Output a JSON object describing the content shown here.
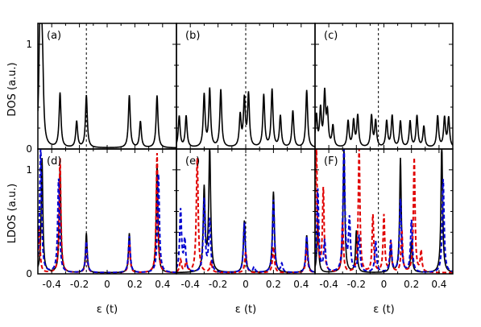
{
  "chart_data": {
    "type": "line",
    "ylabels": {
      "top": "DOS (a.u.)",
      "bottom": "LDOS (a.u.)"
    },
    "xlabel": "ε (t)",
    "xlim": [
      -0.5,
      0.5
    ],
    "xticks": [
      "-0.4",
      "-0.2",
      "0",
      "0.2",
      "0.4"
    ],
    "top_yticks": [
      "0",
      "1"
    ],
    "bottom_yticks": [
      "0",
      "1"
    ],
    "top_ylim": [
      0,
      1.2
    ],
    "bottom_ylim": [
      0,
      1.2
    ],
    "panels": [
      {
        "label": "(a)",
        "row": 0,
        "col": 0,
        "dashed_line_x": -0.15,
        "series": [
          {
            "color": "#000000",
            "dash": false,
            "width": 0.008,
            "peaks": [
              [
                -0.485,
                1.1
              ],
              [
                -0.475,
                0.9
              ],
              [
                -0.465,
                0.45
              ],
              [
                -0.34,
                0.52
              ],
              [
                -0.22,
                0.25
              ],
              [
                -0.15,
                0.5
              ],
              [
                0.16,
                0.5
              ],
              [
                0.24,
                0.25
              ],
              [
                0.36,
                0.5
              ]
            ]
          }
        ]
      },
      {
        "label": "(b)",
        "row": 0,
        "col": 1,
        "dashed_line_x": 0.0,
        "series": [
          {
            "color": "#000000",
            "dash": false,
            "width": 0.008,
            "peaks": [
              [
                -0.48,
                0.3
              ],
              [
                -0.43,
                0.3
              ],
              [
                -0.3,
                0.5
              ],
              [
                -0.26,
                0.55
              ],
              [
                -0.18,
                0.55
              ],
              [
                -0.04,
                0.3
              ],
              [
                -0.01,
                0.45
              ],
              [
                0.02,
                0.5
              ],
              [
                0.13,
                0.5
              ],
              [
                0.19,
                0.55
              ],
              [
                0.25,
                0.3
              ],
              [
                0.34,
                0.35
              ],
              [
                0.44,
                0.55
              ]
            ]
          }
        ]
      },
      {
        "label": "(c)",
        "row": 0,
        "col": 2,
        "dashed_line_x": -0.04,
        "series": [
          {
            "color": "#000000",
            "dash": false,
            "width": 0.008,
            "peaks": [
              [
                -0.49,
                0.3
              ],
              [
                -0.46,
                0.35
              ],
              [
                -0.43,
                0.5
              ],
              [
                -0.41,
                0.3
              ],
              [
                -0.37,
                0.2
              ],
              [
                -0.26,
                0.25
              ],
              [
                -0.22,
                0.25
              ],
              [
                -0.19,
                0.3
              ],
              [
                -0.09,
                0.3
              ],
              [
                -0.06,
                0.25
              ],
              [
                0.02,
                0.25
              ],
              [
                0.06,
                0.3
              ],
              [
                0.12,
                0.25
              ],
              [
                0.19,
                0.25
              ],
              [
                0.24,
                0.3
              ],
              [
                0.29,
                0.2
              ],
              [
                0.39,
                0.3
              ],
              [
                0.44,
                0.28
              ],
              [
                0.47,
                0.28
              ]
            ]
          }
        ]
      },
      {
        "label": "(d)",
        "row": 1,
        "col": 0,
        "dashed_line_x": -0.15,
        "series": [
          {
            "color": "#000000",
            "dash": false,
            "width": 0.007,
            "peaks": [
              [
                -0.47,
                1.1
              ],
              [
                -0.34,
                1.0
              ],
              [
                -0.15,
                0.38
              ],
              [
                0.16,
                0.38
              ],
              [
                0.36,
                1.05
              ]
            ]
          },
          {
            "color": "#e00000",
            "dash": true,
            "width": 0.007,
            "peaks": [
              [
                -0.49,
                0.45
              ],
              [
                -0.34,
                1.1
              ],
              [
                -0.15,
                0.3
              ],
              [
                0.16,
                0.3
              ],
              [
                0.36,
                1.15
              ]
            ]
          },
          {
            "color": "#0000d0",
            "dash": true,
            "width": 0.008,
            "peaks": [
              [
                -0.48,
                1.2
              ],
              [
                -0.35,
                0.9
              ],
              [
                -0.15,
                0.3
              ],
              [
                0.16,
                0.35
              ],
              [
                0.37,
                0.95
              ]
            ]
          }
        ]
      },
      {
        "label": "(e)",
        "row": 1,
        "col": 1,
        "dashed_line_x": 0.0,
        "series": [
          {
            "color": "#000000",
            "dash": false,
            "width": 0.008,
            "peaks": [
              [
                -0.3,
                0.8
              ],
              [
                -0.26,
                1.2
              ],
              [
                -0.01,
                0.5
              ],
              [
                0.2,
                0.78
              ],
              [
                0.44,
                0.36
              ]
            ]
          },
          {
            "color": "#e00000",
            "dash": true,
            "width": 0.008,
            "peaks": [
              [
                -0.47,
                0.12
              ],
              [
                -0.43,
                0.1
              ],
              [
                -0.35,
                1.1
              ],
              [
                -0.25,
                0.1
              ],
              [
                -0.0,
                0.2
              ],
              [
                0.2,
                0.25
              ],
              [
                0.44,
                0.25
              ]
            ]
          },
          {
            "color": "#0000d0",
            "dash": true,
            "width": 0.008,
            "peaks": [
              [
                -0.47,
                0.6
              ],
              [
                -0.44,
                0.3
              ],
              [
                -0.3,
                0.7
              ],
              [
                -0.26,
                0.5
              ],
              [
                -0.01,
                0.48
              ],
              [
                0.06,
                0.05
              ],
              [
                0.2,
                0.7
              ],
              [
                0.26,
                0.08
              ],
              [
                0.44,
                0.35
              ]
            ]
          }
        ]
      },
      {
        "label": "(F)",
        "row": 1,
        "col": 2,
        "dashed_line_x": -0.04,
        "series": [
          {
            "color": "#000000",
            "dash": false,
            "width": 0.007,
            "peaks": [
              [
                -0.48,
                0.5
              ],
              [
                -0.29,
                1.2
              ],
              [
                -0.2,
                0.4
              ],
              [
                0.05,
                0.25
              ],
              [
                0.12,
                1.1
              ],
              [
                0.2,
                0.3
              ],
              [
                0.42,
                1.25
              ]
            ]
          },
          {
            "color": "#e00000",
            "dash": true,
            "width": 0.007,
            "peaks": [
              [
                -0.49,
                1.2
              ],
              [
                -0.44,
                0.8
              ],
              [
                -0.3,
                0.5
              ],
              [
                -0.18,
                1.2
              ],
              [
                -0.08,
                0.55
              ],
              [
                0.0,
                0.55
              ],
              [
                0.05,
                0.3
              ],
              [
                0.13,
                0.4
              ],
              [
                0.22,
                1.1
              ],
              [
                0.27,
                0.2
              ]
            ]
          },
          {
            "color": "#0000d0",
            "dash": true,
            "width": 0.008,
            "peaks": [
              [
                -0.48,
                0.8
              ],
              [
                -0.43,
                0.3
              ],
              [
                -0.29,
                1.2
              ],
              [
                -0.25,
                0.5
              ],
              [
                -0.18,
                0.35
              ],
              [
                -0.06,
                0.3
              ],
              [
                0.05,
                0.3
              ],
              [
                0.12,
                0.7
              ],
              [
                0.2,
                0.5
              ],
              [
                0.43,
                0.9
              ]
            ]
          }
        ]
      }
    ]
  }
}
